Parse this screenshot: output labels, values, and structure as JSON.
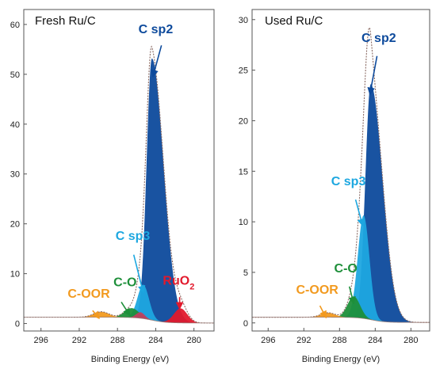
{
  "chart_data": [
    {
      "type": "area",
      "title": "Fresh Ru/C",
      "xlabel": "Binding Energy (eV)",
      "ylabel": "",
      "x_reversed": true,
      "xlim": [
        297.8,
        277.9
      ],
      "ylim": [
        -1.5,
        63
      ],
      "xticks": [
        296,
        292,
        288,
        284,
        280
      ],
      "yticks": [
        0,
        10,
        20,
        30,
        40,
        50,
        60
      ],
      "colors": {
        "c_sp2": "#0d4a9c",
        "c_sp3": "#1da7e0",
        "c_o": "#1e8f3a",
        "c_oor": "#f29a1f",
        "ruo2": "#e2192c",
        "envelope": "#8a6a63"
      },
      "series": [
        {
          "name": "C sp2",
          "center": 284.4,
          "height": 52.5,
          "width": 0.55,
          "tail": 2.2
        },
        {
          "name": "C sp3",
          "center": 285.3,
          "height": 6.8,
          "width": 0.6
        },
        {
          "name": "C-O",
          "center": 286.5,
          "height": 1.9,
          "width": 0.75
        },
        {
          "name": "C-OOR",
          "center": 289.7,
          "height": 1.1,
          "width": 0.8
        },
        {
          "name": "RuO2",
          "center": 281.4,
          "height": 2.9,
          "width": 0.7
        },
        {
          "name": "",
          "center": 285.6,
          "height": 1.2,
          "width": 0.45
        }
      ],
      "annotations": [
        {
          "key": "c_sp2",
          "text": "C sp2",
          "sub": ""
        },
        {
          "key": "c_sp3",
          "text": "C sp3",
          "sub": ""
        },
        {
          "key": "c_o",
          "text": "C-O",
          "sub": ""
        },
        {
          "key": "c_oor",
          "text": "C-OOR",
          "sub": ""
        },
        {
          "key": "ruo2",
          "text": "RuO",
          "sub": "2"
        }
      ]
    },
    {
      "type": "area",
      "title": "Used Ru/C",
      "xlabel": "Binding Energy (eV)",
      "ylabel": "",
      "x_reversed": true,
      "xlim": [
        297.8,
        277.9
      ],
      "ylim": [
        -0.8,
        31
      ],
      "xticks": [
        296,
        292,
        288,
        284,
        280
      ],
      "yticks": [
        0,
        5,
        10,
        15,
        20,
        25,
        30
      ],
      "colors": {
        "c_sp2": "#0d4a9c",
        "c_sp3": "#1da7e0",
        "c_o": "#1e8f3a",
        "c_oor": "#f29a1f",
        "envelope": "#8a6a63"
      },
      "series": [
        {
          "name": "C sp2",
          "center": 284.5,
          "height": 23.3,
          "width": 0.6,
          "tail": 2.2
        },
        {
          "name": "C sp3",
          "center": 285.3,
          "height": 10.2,
          "width": 0.65
        },
        {
          "name": "C-O",
          "center": 286.4,
          "height": 2.1,
          "width": 0.7
        },
        {
          "name": "C-OOR",
          "center": 289.3,
          "height": 0.45,
          "width": 0.8
        }
      ],
      "annotations": [
        {
          "key": "c_sp2",
          "text": "C sp2",
          "sub": ""
        },
        {
          "key": "c_sp3",
          "text": "C sp3",
          "sub": ""
        },
        {
          "key": "c_o",
          "text": "C-O",
          "sub": ""
        },
        {
          "key": "c_oor",
          "text": "C-OOR",
          "sub": ""
        }
      ]
    }
  ]
}
